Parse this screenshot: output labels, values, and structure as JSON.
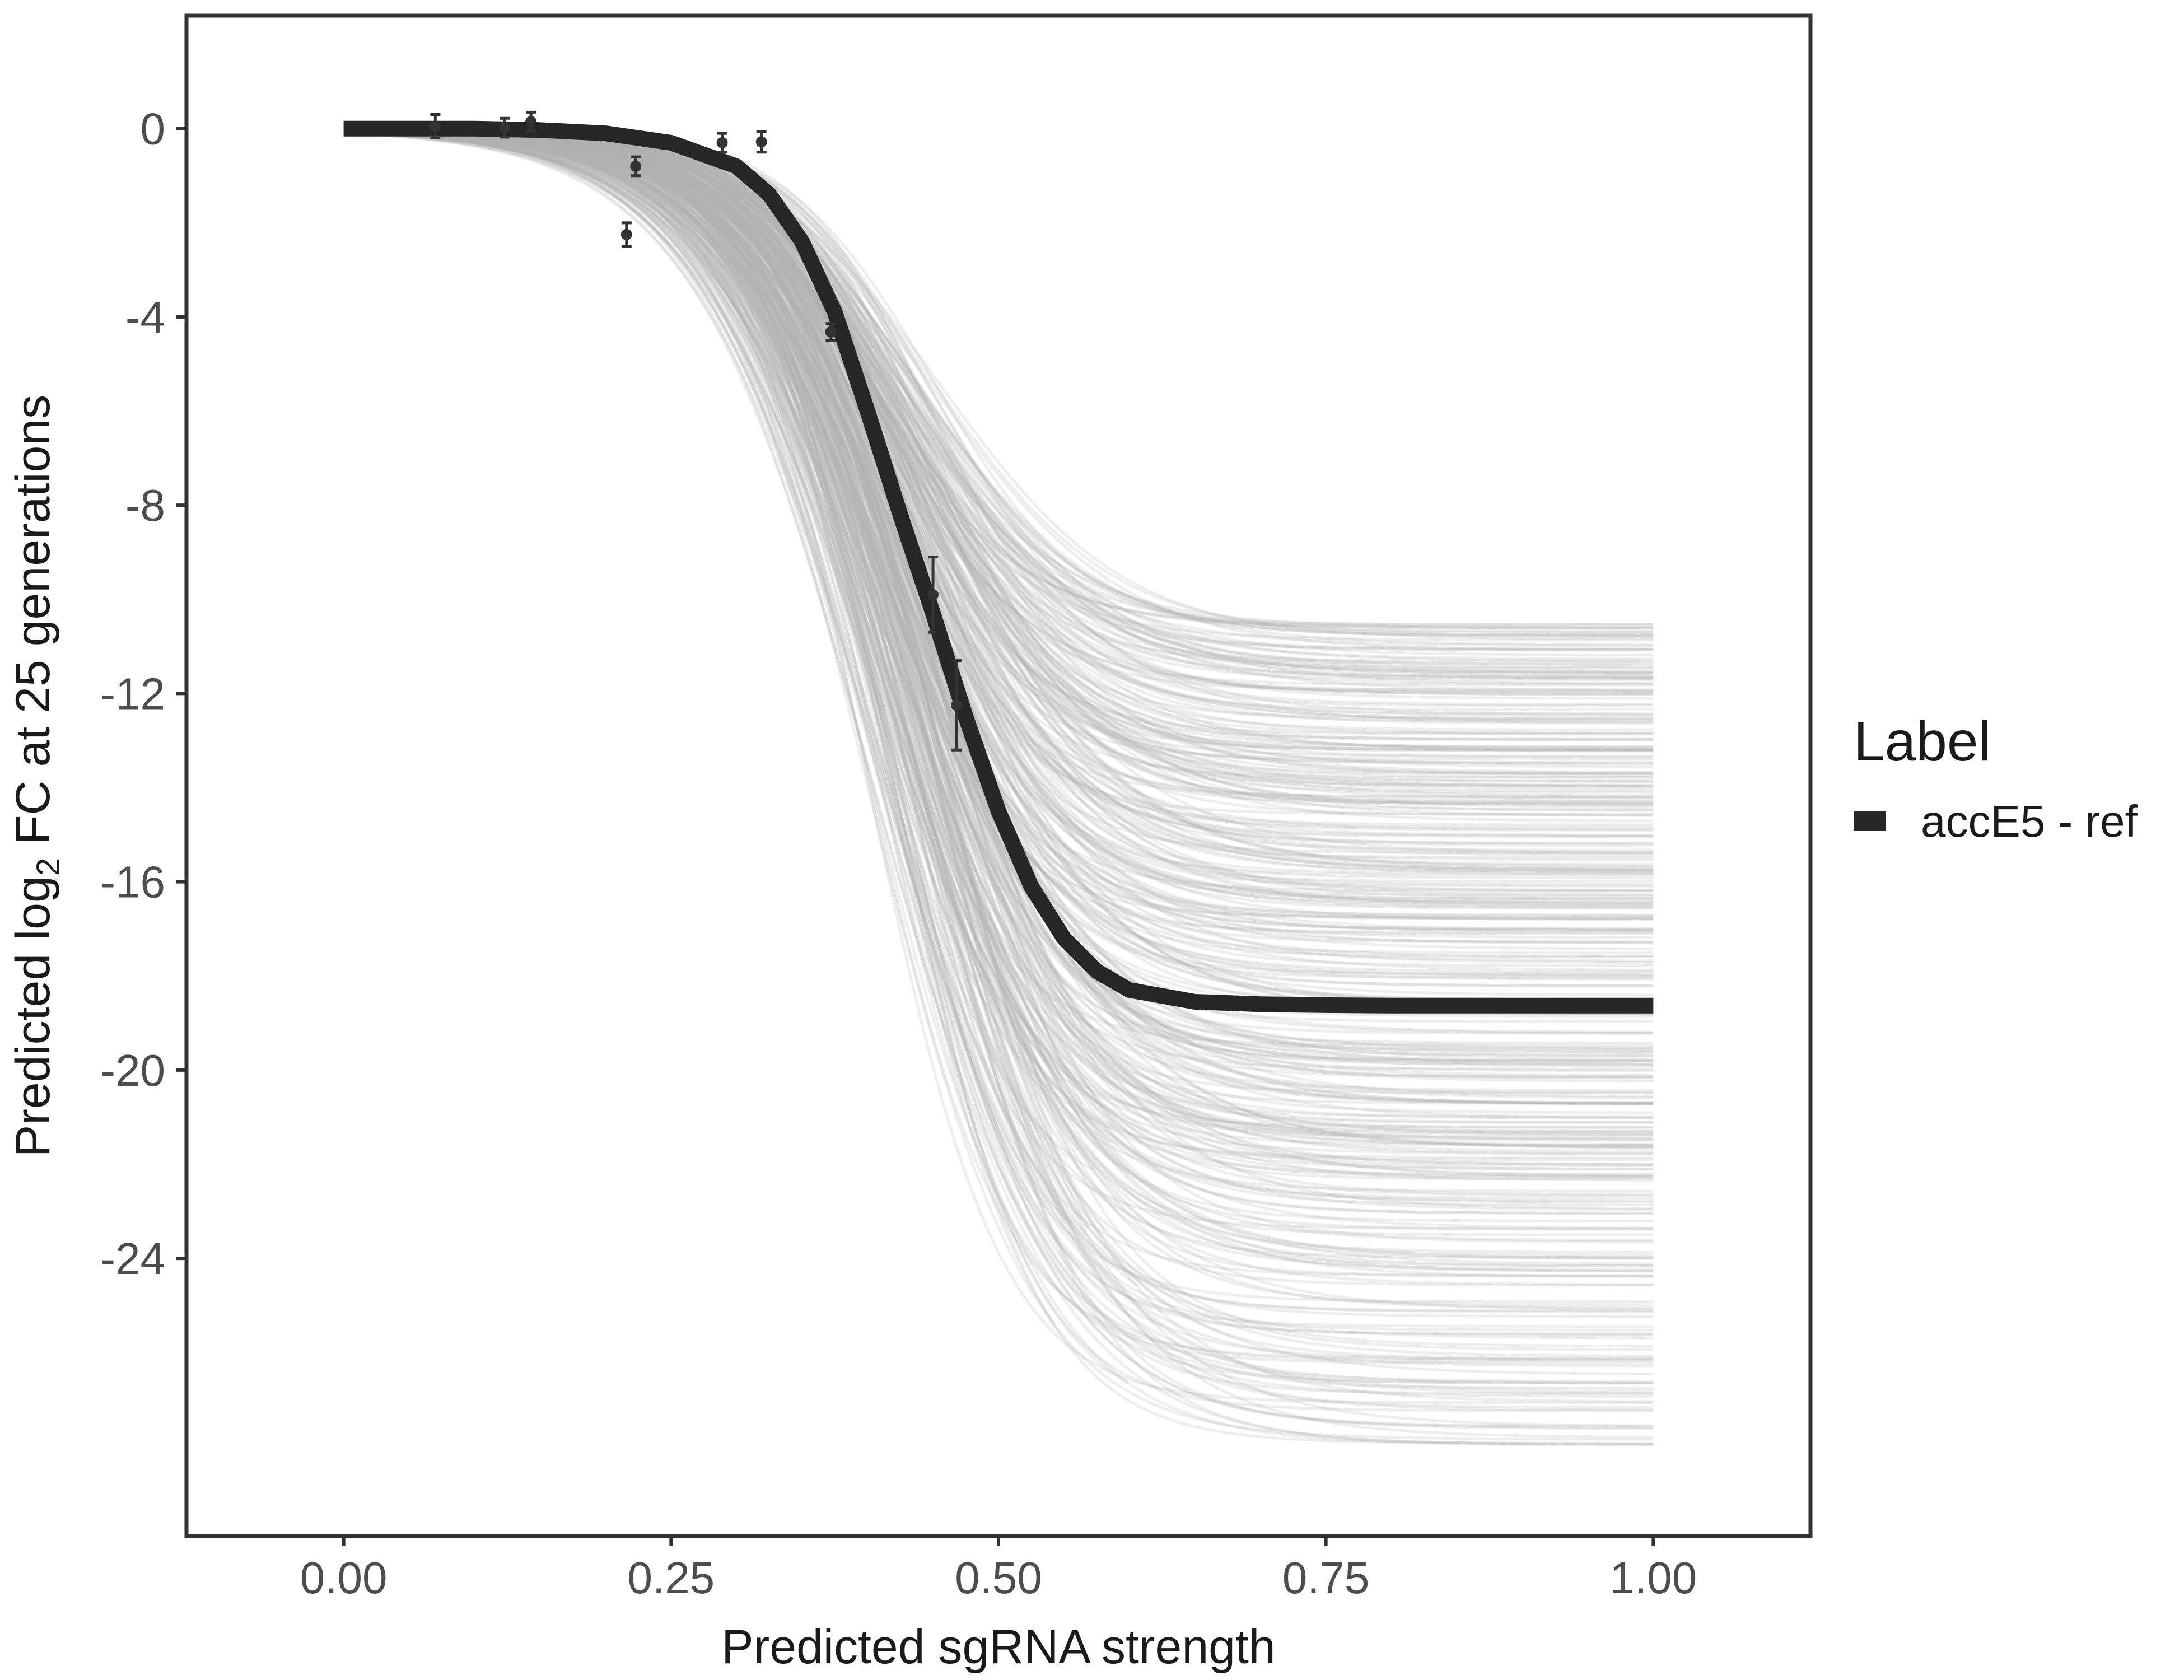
{
  "chart_data": {
    "type": "line",
    "xlabel": "Predicted sgRNA strength",
    "ylabel_parts": [
      "Predicted  log",
      "2",
      " FC at 25 generations"
    ],
    "xlim": [
      -0.12,
      1.12
    ],
    "ylim": [
      -29.9,
      2.4
    ],
    "xticks": [
      0.0,
      0.25,
      0.5,
      0.75,
      1.0
    ],
    "xtick_labels": [
      "0.00",
      "0.25",
      "0.50",
      "0.75",
      "1.00"
    ],
    "yticks": [
      0,
      -4,
      -8,
      -12,
      -16,
      -20,
      -24
    ],
    "ytick_labels": [
      "0",
      "-4",
      "-8",
      "-12",
      "-16",
      "-20",
      "-24"
    ],
    "grid": false,
    "legend": {
      "title": "Label",
      "position": "right",
      "entries": [
        {
          "label": "accE5 - ref",
          "color": "#262626"
        }
      ]
    },
    "series": [
      {
        "name": "accE5 - ref",
        "style": "thick dark fitted curve",
        "color": "#262626",
        "x": [
          0.0,
          0.05,
          0.1,
          0.15,
          0.2,
          0.25,
          0.3,
          0.325,
          0.35,
          0.375,
          0.4,
          0.425,
          0.45,
          0.475,
          0.5,
          0.525,
          0.55,
          0.575,
          0.6,
          0.65,
          0.7,
          0.75,
          0.8,
          0.9,
          1.0
        ],
        "y": [
          0.0,
          0.0,
          0.0,
          -0.03,
          -0.1,
          -0.3,
          -0.8,
          -1.4,
          -2.4,
          -3.9,
          -6.0,
          -8.2,
          -10.3,
          -12.5,
          -14.5,
          -16.1,
          -17.2,
          -17.9,
          -18.3,
          -18.55,
          -18.6,
          -18.62,
          -18.63,
          -18.63,
          -18.63
        ]
      }
    ],
    "posterior_draws": {
      "description_color": "#b3b3b3",
      "count": 400,
      "plateau_range": [
        -28.0,
        -10.5
      ]
    },
    "observations": {
      "x": [
        0.07,
        0.123,
        0.143,
        0.216,
        0.223,
        0.289,
        0.319,
        0.372,
        0.45,
        0.468
      ],
      "y": [
        0.05,
        0.02,
        0.15,
        -2.25,
        -0.8,
        -0.3,
        -0.28,
        -4.32,
        -9.9,
        -12.25
      ],
      "err": [
        0.25,
        0.2,
        0.2,
        0.25,
        0.2,
        0.2,
        0.22,
        0.18,
        0.8,
        0.95
      ],
      "color": "#333333"
    }
  }
}
